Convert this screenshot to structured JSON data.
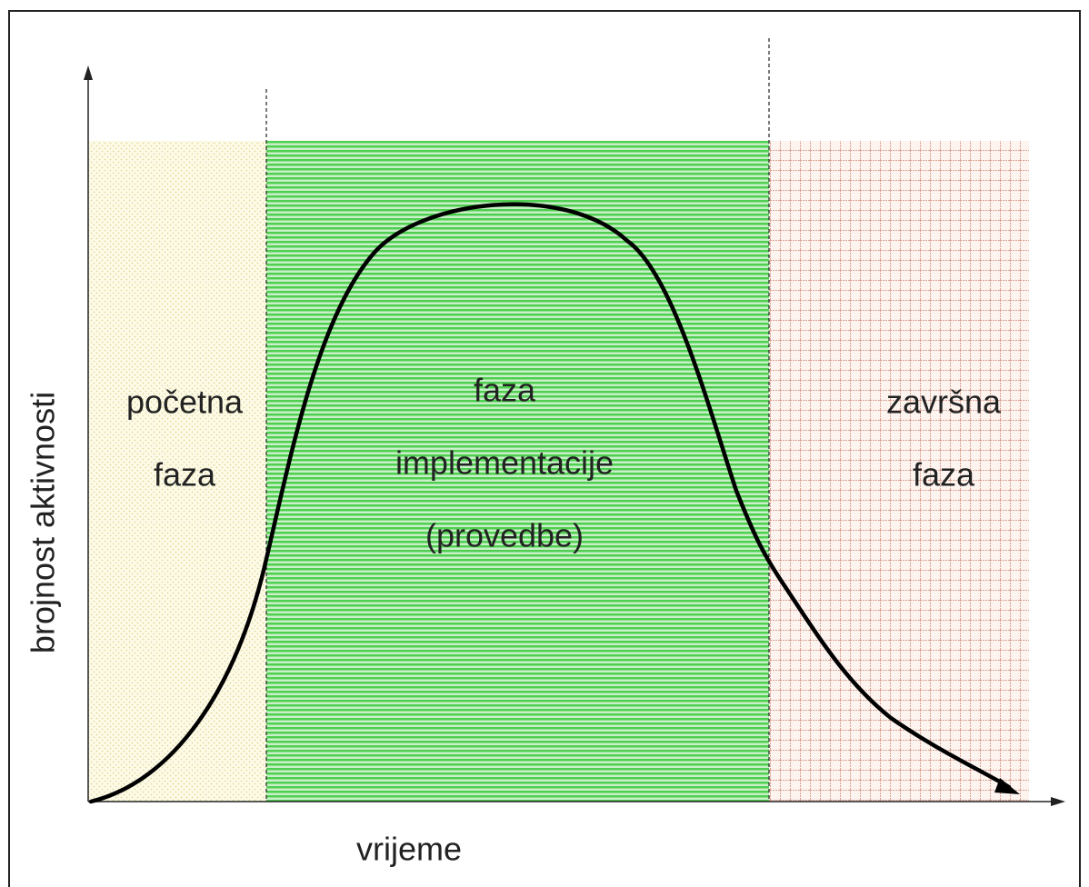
{
  "axes": {
    "x_label": "vrijeme",
    "y_label": "brojnost aktivnosti"
  },
  "phases": [
    {
      "label_lines": [
        "početna",
        "faza"
      ]
    },
    {
      "label_lines": [
        "faza",
        "implementacije",
        "(provedbe)"
      ]
    },
    {
      "label_lines": [
        "završna",
        "faza"
      ]
    }
  ]
}
